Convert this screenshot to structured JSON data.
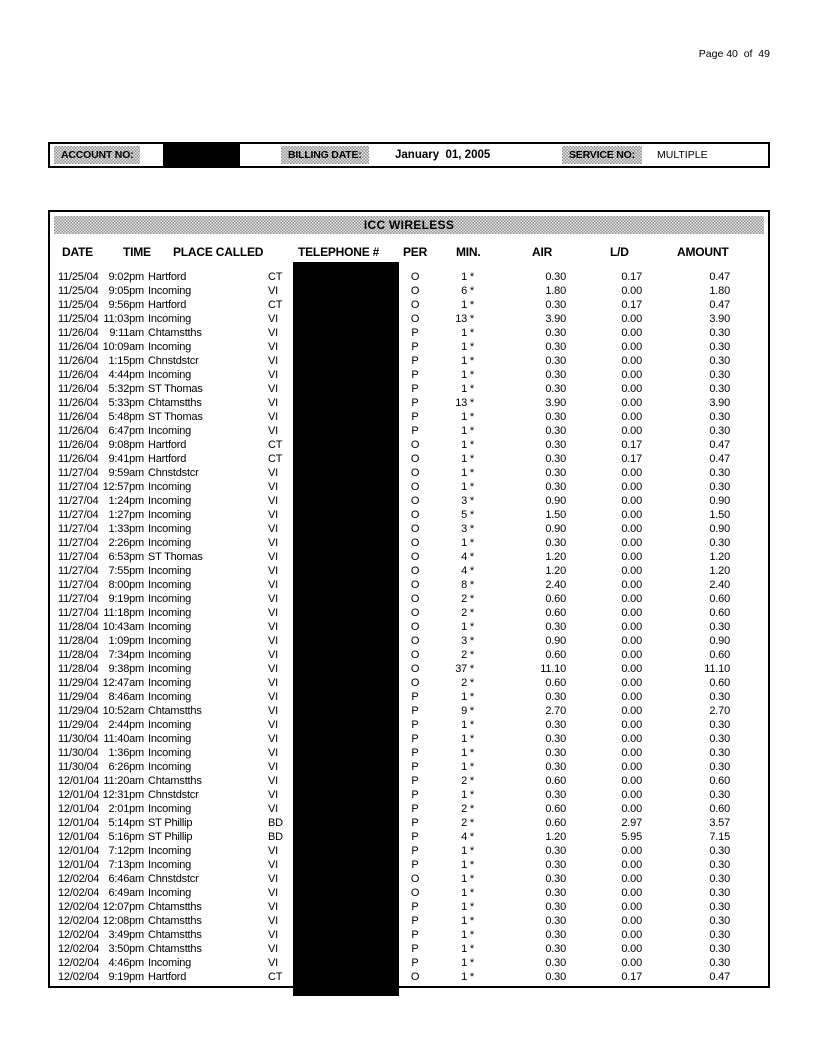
{
  "page": {
    "page_label": "Page 40  of  49"
  },
  "account_bar": {
    "account_label": "ACCOUNT NO:",
    "billing_label": "BILLING DATE:",
    "billing_value": "January  01, 2005",
    "service_label": "SERVICE NO:",
    "service_value": "MULTIPLE"
  },
  "table": {
    "title": "ICC WIRELESS",
    "columns": [
      "DATE",
      "TIME",
      "PLACE CALLED",
      "TELEPHONE #",
      "PER",
      "MIN.",
      "AIR",
      "L/D",
      "AMOUNT"
    ],
    "rows": [
      [
        "11/25/04",
        "9:02pm",
        "Hartford",
        "CT",
        "O",
        "1 *",
        "0.30",
        "0.17",
        "0.47"
      ],
      [
        "11/25/04",
        "9:05pm",
        "Incoming",
        "VI",
        "O",
        "6 *",
        "1.80",
        "0.00",
        "1.80"
      ],
      [
        "11/25/04",
        "9:56pm",
        "Hartford",
        "CT",
        "O",
        "1 *",
        "0.30",
        "0.17",
        "0.47"
      ],
      [
        "11/25/04",
        "11:03pm",
        "Incoming",
        "VI",
        "O",
        "13 *",
        "3.90",
        "0.00",
        "3.90"
      ],
      [
        "11/26/04",
        "9:11am",
        "Chtamstths",
        "VI",
        "P",
        "1 *",
        "0.30",
        "0.00",
        "0.30"
      ],
      [
        "11/26/04",
        "10:09am",
        "Incoming",
        "VI",
        "P",
        "1 *",
        "0.30",
        "0.00",
        "0.30"
      ],
      [
        "11/26/04",
        "1:15pm",
        "Chnstdstcr",
        "VI",
        "P",
        "1 *",
        "0.30",
        "0.00",
        "0.30"
      ],
      [
        "11/26/04",
        "4:44pm",
        "Incoming",
        "VI",
        "P",
        "1 *",
        "0.30",
        "0.00",
        "0.30"
      ],
      [
        "11/26/04",
        "5:32pm",
        "ST Thomas",
        "VI",
        "P",
        "1 *",
        "0.30",
        "0.00",
        "0.30"
      ],
      [
        "11/26/04",
        "5:33pm",
        "Chtamstths",
        "VI",
        "P",
        "13 *",
        "3.90",
        "0.00",
        "3.90"
      ],
      [
        "11/26/04",
        "5:48pm",
        "ST Thomas",
        "VI",
        "P",
        "1 *",
        "0.30",
        "0.00",
        "0.30"
      ],
      [
        "11/26/04",
        "6:47pm",
        "Incoming",
        "VI",
        "P",
        "1 *",
        "0.30",
        "0.00",
        "0.30"
      ],
      [
        "11/26/04",
        "9:08pm",
        "Hartford",
        "CT",
        "O",
        "1 *",
        "0.30",
        "0.17",
        "0.47"
      ],
      [
        "11/26/04",
        "9:41pm",
        "Hartford",
        "CT",
        "O",
        "1 *",
        "0.30",
        "0.17",
        "0.47"
      ],
      [
        "11/27/04",
        "9:59am",
        "Chnstdstcr",
        "VI",
        "O",
        "1 *",
        "0.30",
        "0.00",
        "0.30"
      ],
      [
        "11/27/04",
        "12:57pm",
        "Incoming",
        "VI",
        "O",
        "1 *",
        "0.30",
        "0.00",
        "0.30"
      ],
      [
        "11/27/04",
        "1:24pm",
        "Incoming",
        "VI",
        "O",
        "3 *",
        "0.90",
        "0.00",
        "0.90"
      ],
      [
        "11/27/04",
        "1:27pm",
        "Incoming",
        "VI",
        "O",
        "5 *",
        "1.50",
        "0.00",
        "1.50"
      ],
      [
        "11/27/04",
        "1:33pm",
        "Incoming",
        "VI",
        "O",
        "3 *",
        "0.90",
        "0.00",
        "0.90"
      ],
      [
        "11/27/04",
        "2:26pm",
        "Incoming",
        "VI",
        "O",
        "1 *",
        "0.30",
        "0.00",
        "0.30"
      ],
      [
        "11/27/04",
        "6:53pm",
        "ST Thomas",
        "VI",
        "O",
        "4 *",
        "1.20",
        "0.00",
        "1.20"
      ],
      [
        "11/27/04",
        "7:55pm",
        "Incoming",
        "VI",
        "O",
        "4 *",
        "1.20",
        "0.00",
        "1.20"
      ],
      [
        "11/27/04",
        "8:00pm",
        "Incoming",
        "VI",
        "O",
        "8 *",
        "2.40",
        "0.00",
        "2.40"
      ],
      [
        "11/27/04",
        "9:19pm",
        "Incoming",
        "VI",
        "O",
        "2 *",
        "0.60",
        "0.00",
        "0.60"
      ],
      [
        "11/27/04",
        "11:18pm",
        "Incoming",
        "VI",
        "O",
        "2 *",
        "0.60",
        "0.00",
        "0.60"
      ],
      [
        "11/28/04",
        "10:43am",
        "Incoming",
        "VI",
        "O",
        "1 *",
        "0.30",
        "0.00",
        "0.30"
      ],
      [
        "11/28/04",
        "1:09pm",
        "Incoming",
        "VI",
        "O",
        "3 *",
        "0.90",
        "0.00",
        "0.90"
      ],
      [
        "11/28/04",
        "7:34pm",
        "Incoming",
        "VI",
        "O",
        "2 *",
        "0.60",
        "0.00",
        "0.60"
      ],
      [
        "11/28/04",
        "9:38pm",
        "Incoming",
        "VI",
        "O",
        "37 *",
        "11.10",
        "0.00",
        "11.10"
      ],
      [
        "11/29/04",
        "12:47am",
        "Incoming",
        "VI",
        "O",
        "2 *",
        "0.60",
        "0.00",
        "0.60"
      ],
      [
        "11/29/04",
        "8:46am",
        "Incoming",
        "VI",
        "P",
        "1 *",
        "0.30",
        "0.00",
        "0.30"
      ],
      [
        "11/29/04",
        "10:52am",
        "Chtamstths",
        "VI",
        "P",
        "9 *",
        "2.70",
        "0.00",
        "2.70"
      ],
      [
        "11/29/04",
        "2:44pm",
        "Incoming",
        "VI",
        "P",
        "1 *",
        "0.30",
        "0.00",
        "0.30"
      ],
      [
        "11/30/04",
        "11:40am",
        "Incoming",
        "VI",
        "P",
        "1 *",
        "0.30",
        "0.00",
        "0.30"
      ],
      [
        "11/30/04",
        "1:36pm",
        "Incoming",
        "VI",
        "P",
        "1 *",
        "0.30",
        "0.00",
        "0.30"
      ],
      [
        "11/30/04",
        "6:26pm",
        "Incoming",
        "VI",
        "P",
        "1 *",
        "0.30",
        "0.00",
        "0.30"
      ],
      [
        "12/01/04",
        "11:20am",
        "Chtamstths",
        "VI",
        "P",
        "2 *",
        "0.60",
        "0.00",
        "0.60"
      ],
      [
        "12/01/04",
        "12:31pm",
        "Chnstdstcr",
        "VI",
        "P",
        "1 *",
        "0.30",
        "0.00",
        "0.30"
      ],
      [
        "12/01/04",
        "2:01pm",
        "Incoming",
        "VI",
        "P",
        "2 *",
        "0.60",
        "0.00",
        "0.60"
      ],
      [
        "12/01/04",
        "5:14pm",
        "ST Phillip",
        "BD",
        "P",
        "2 *",
        "0.60",
        "2.97",
        "3.57"
      ],
      [
        "12/01/04",
        "5:16pm",
        "ST Phillip",
        "BD",
        "P",
        "4 *",
        "1.20",
        "5.95",
        "7.15"
      ],
      [
        "12/01/04",
        "7:12pm",
        "Incoming",
        "VI",
        "P",
        "1 *",
        "0.30",
        "0.00",
        "0.30"
      ],
      [
        "12/01/04",
        "7:13pm",
        "Incoming",
        "VI",
        "P",
        "1 *",
        "0.30",
        "0.00",
        "0.30"
      ],
      [
        "12/02/04",
        "6:46am",
        "Chnstdstcr",
        "VI",
        "O",
        "1 *",
        "0.30",
        "0.00",
        "0.30"
      ],
      [
        "12/02/04",
        "6:49am",
        "Incoming",
        "VI",
        "O",
        "1 *",
        "0.30",
        "0.00",
        "0.30"
      ],
      [
        "12/02/04",
        "12:07pm",
        "Chtamstths",
        "VI",
        "P",
        "1 *",
        "0.30",
        "0.00",
        "0.30"
      ],
      [
        "12/02/04",
        "12:08pm",
        "Chtamstths",
        "VI",
        "P",
        "1 *",
        "0.30",
        "0.00",
        "0.30"
      ],
      [
        "12/02/04",
        "3:49pm",
        "Chtamstths",
        "VI",
        "P",
        "1 *",
        "0.30",
        "0.00",
        "0.30"
      ],
      [
        "12/02/04",
        "3:50pm",
        "Chtamstths",
        "VI",
        "P",
        "1 *",
        "0.30",
        "0.00",
        "0.30"
      ],
      [
        "12/02/04",
        "4:46pm",
        "Incoming",
        "VI",
        "P",
        "1 *",
        "0.30",
        "0.00",
        "0.30"
      ],
      [
        "12/02/04",
        "9:19pm",
        "Hartford",
        "CT",
        "O",
        "1 *",
        "0.30",
        "0.17",
        "0.47"
      ]
    ]
  }
}
